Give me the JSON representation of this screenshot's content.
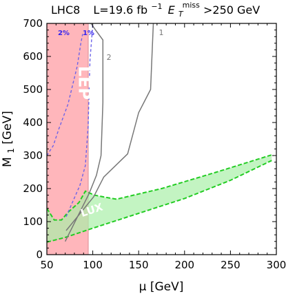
{
  "chart_data": {
    "type": "line",
    "title": "LHC8   L=19.6 fb⁻¹ Eᵀmiss>250 GeV",
    "title_parts": {
      "lhc": "LHC8",
      "lumi": "L=19.6 fb",
      "lumi_exp": "−1",
      "et_sym": "E",
      "et_sub": "T",
      "et_sup": "miss",
      "et_cut": ">250 GeV"
    },
    "xlabel": "μ [GeV]",
    "ylabel": "M",
    "ylabel_sub": "1",
    "ylabel_unit": " [GeV]",
    "xlim": [
      50,
      300
    ],
    "ylim": [
      0,
      700
    ],
    "xticks": [
      50,
      100,
      150,
      200,
      250,
      300
    ],
    "yticks": [
      0,
      100,
      200,
      300,
      400,
      500,
      600,
      700
    ],
    "grid": false,
    "colors": {
      "lep_band": "#ffb6bb",
      "lep_edge": "#e8a0a6",
      "lux_fill": "#aaf0a8",
      "lux_line": "#22cc22",
      "contour": "#777777",
      "dashed_blue": "#6d63e8",
      "dashed_blue_label": "#3322ee",
      "lux_label": "#ffffff",
      "lep_label": "#ffffff"
    },
    "regions": [
      {
        "name": "LEP",
        "type": "band",
        "xrange": [
          50,
          95
        ],
        "label": "LEP"
      },
      {
        "name": "LUX",
        "type": "band",
        "label": "LUX",
        "upper": [
          [
            50,
            140
          ],
          [
            58,
            105
          ],
          [
            66,
            105
          ],
          [
            73,
            128
          ],
          [
            85,
            158
          ],
          [
            92,
            192
          ],
          [
            102,
            180
          ],
          [
            117,
            172
          ],
          [
            126,
            168
          ],
          [
            175,
            200
          ],
          [
            235,
            250
          ],
          [
            295,
            302
          ]
        ],
        "lower": [
          [
            50,
            38
          ],
          [
            70,
            52
          ],
          [
            100,
            80
          ],
          [
            150,
            125
          ],
          [
            200,
            170
          ],
          [
            250,
            225
          ],
          [
            295,
            285
          ]
        ]
      }
    ],
    "series": [
      {
        "name": "1",
        "style": "solid",
        "points": [
          [
            71,
            73
          ],
          [
            101,
            175
          ],
          [
            112,
            235
          ],
          [
            138,
            305
          ],
          [
            150,
            430
          ],
          [
            163,
            500
          ],
          [
            166,
            700
          ]
        ]
      },
      {
        "name": "2",
        "style": "solid",
        "points": [
          [
            70,
            40
          ],
          [
            96,
            185
          ],
          [
            104,
            240
          ],
          [
            109,
            300
          ],
          [
            111,
            460
          ],
          [
            111,
            650
          ],
          [
            103,
            680
          ],
          [
            98,
            700
          ]
        ]
      },
      {
        "name": "1%",
        "style": "dashed",
        "points": [
          [
            71,
            115
          ],
          [
            86,
            210
          ],
          [
            92,
            270
          ],
          [
            95,
            390
          ],
          [
            97,
            590
          ],
          [
            99,
            660
          ],
          [
            100,
            700
          ]
        ]
      },
      {
        "name": "2%",
        "style": "dashed",
        "points": [
          [
            50,
            300
          ],
          [
            57,
            330
          ],
          [
            63,
            380
          ],
          [
            73,
            455
          ],
          [
            83,
            570
          ],
          [
            87,
            640
          ],
          [
            89,
            668
          ]
        ]
      }
    ],
    "annotations": [
      {
        "text": "1",
        "x": 172,
        "y": 665
      },
      {
        "text": "2",
        "x": 115,
        "y": 590
      },
      {
        "text": "1%",
        "x": 89,
        "y": 665
      },
      {
        "text": "2%",
        "x": 62,
        "y": 665
      },
      {
        "text": "LEP",
        "x": 85,
        "y": 520
      },
      {
        "text": "LUX",
        "x": 100,
        "y": 125
      }
    ]
  }
}
